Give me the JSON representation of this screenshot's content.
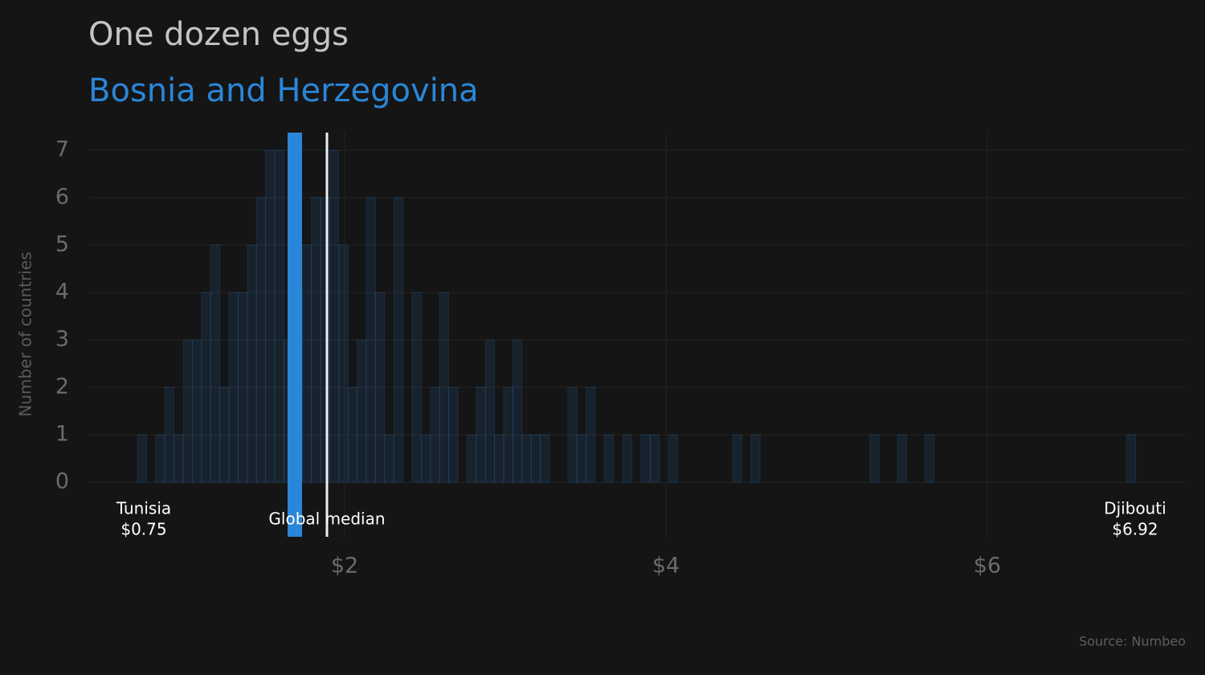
{
  "chart_data": {
    "type": "histogram",
    "title": "One dozen eggs",
    "subtitle": "Bosnia and Herzegovina",
    "y_label": "Number of countries",
    "source": "Source: Numbeo",
    "color": "#2a86d8",
    "bins": [
      0.71,
      0.767,
      0.824,
      0.881,
      0.938,
      0.995,
      1.052,
      1.109,
      1.166,
      1.223,
      1.28,
      1.337,
      1.394,
      1.451,
      1.508,
      1.565,
      1.622,
      1.679,
      1.736,
      1.793,
      1.85,
      1.907,
      1.964,
      2.021,
      2.078,
      2.135,
      2.192,
      2.249,
      2.306,
      2.363,
      2.42,
      2.477,
      2.534,
      2.591,
      2.648,
      2.705,
      2.762,
      2.819,
      2.876,
      2.933,
      2.99,
      3.047,
      3.104,
      3.161,
      3.218,
      3.275,
      3.332,
      3.389,
      3.446,
      3.503,
      3.56,
      3.617,
      3.674,
      3.731,
      3.788,
      3.845,
      3.902,
      3.959,
      4.016,
      4.073,
      4.13,
      4.187,
      4.244,
      4.301,
      4.358,
      4.415,
      4.472,
      4.529,
      4.586,
      4.643,
      4.7,
      4.757,
      4.814,
      4.871,
      4.928,
      4.985,
      5.042,
      5.099,
      5.156,
      5.213,
      5.27,
      5.327,
      5.384,
      5.441,
      5.498,
      5.555,
      5.612,
      5.669,
      5.726,
      5.783,
      5.84,
      5.897,
      5.954,
      6.011,
      6.068,
      6.125,
      6.182,
      6.239,
      6.296,
      6.353,
      6.41,
      6.467,
      6.524,
      6.581,
      6.638,
      6.695,
      6.752,
      6.809,
      6.866,
      6.923
    ],
    "counts": [
      1,
      0,
      1,
      2,
      1,
      3,
      3,
      4,
      5,
      2,
      4,
      4,
      5,
      6,
      7,
      7,
      3,
      4,
      5,
      6,
      6,
      7,
      5,
      2,
      3,
      6,
      4,
      1,
      6,
      0,
      4,
      1,
      2,
      4,
      2,
      0,
      1,
      2,
      3,
      1,
      2,
      3,
      1,
      1,
      1,
      0,
      0,
      2,
      1,
      2,
      0,
      1,
      0,
      1,
      0,
      1,
      1,
      0,
      1,
      0,
      0,
      0,
      0,
      0,
      0,
      1,
      0,
      1,
      0,
      0,
      0,
      0,
      0,
      0,
      0,
      0,
      0,
      0,
      0,
      0,
      1,
      0,
      0,
      1,
      0,
      0,
      1,
      0,
      0,
      0,
      0,
      0,
      0,
      0,
      0,
      0,
      0,
      0,
      0,
      0,
      0,
      0,
      0,
      0,
      0,
      0,
      0,
      0,
      1
    ],
    "highlight": {
      "name": "Bosnia and Herzegovina",
      "value": 1.69,
      "color": "#2a86d8"
    },
    "median": {
      "label": "Global median",
      "value": 1.89,
      "color": "#f0f0f0"
    },
    "extremes": [
      {
        "name": "Tunisia",
        "value": 0.75,
        "value_label": "$0.75"
      },
      {
        "name": "Djibouti",
        "value": 6.92,
        "value_label": "$6.92"
      }
    ],
    "xlim": [
      0.405,
      7.23
    ],
    "ylim": [
      -1.15,
      7.37
    ],
    "xticks": [
      {
        "value": 2,
        "label": "$2"
      },
      {
        "value": 4,
        "label": "$4"
      },
      {
        "value": 6,
        "label": "$6"
      }
    ],
    "yticks": [
      0,
      1,
      2,
      3,
      4,
      5,
      6,
      7
    ],
    "grid": true
  }
}
